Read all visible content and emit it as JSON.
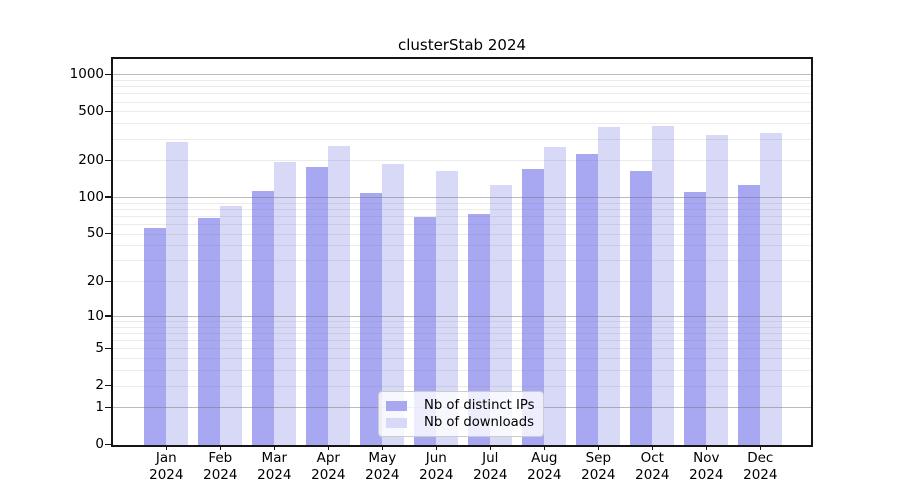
{
  "title": "clusterStab 2024",
  "chart_data": {
    "type": "bar",
    "title": "clusterStab 2024",
    "categories": [
      {
        "month": "Jan",
        "year": "2024"
      },
      {
        "month": "Feb",
        "year": "2024"
      },
      {
        "month": "Mar",
        "year": "2024"
      },
      {
        "month": "Apr",
        "year": "2024"
      },
      {
        "month": "May",
        "year": "2024"
      },
      {
        "month": "Jun",
        "year": "2024"
      },
      {
        "month": "Jul",
        "year": "2024"
      },
      {
        "month": "Aug",
        "year": "2024"
      },
      {
        "month": "Sep",
        "year": "2024"
      },
      {
        "month": "Oct",
        "year": "2024"
      },
      {
        "month": "Nov",
        "year": "2024"
      },
      {
        "month": "Dec",
        "year": "2024"
      }
    ],
    "series": [
      {
        "name": "Nb of distinct IPs",
        "color": "#a7a7f2",
        "values": [
          56,
          68,
          113,
          179,
          109,
          70,
          74,
          171,
          228,
          164,
          111,
          127
        ]
      },
      {
        "name": "Nb of downloads",
        "color": "#d8d8f7",
        "values": [
          283,
          85,
          196,
          262,
          190,
          164,
          127,
          260,
          380,
          386,
          327,
          334
        ]
      }
    ],
    "xlabel": "",
    "ylabel": "",
    "yscale": "log1p",
    "y_ticks": [
      0,
      1,
      2,
      5,
      10,
      20,
      50,
      100,
      200,
      500,
      1000
    ],
    "ylim": [
      0,
      1330
    ],
    "grid": "on",
    "legend_position": "bottom-center"
  },
  "colors": {
    "background": "#ffffff",
    "bar_distinct_ips": "#a7a7f2",
    "bar_downloads": "#d8d8f7",
    "grid_major": "rgba(120,120,120,0.50)",
    "grid_minor": "rgba(130,130,130,0.16)",
    "spine": "#151515",
    "text": "#000000"
  }
}
